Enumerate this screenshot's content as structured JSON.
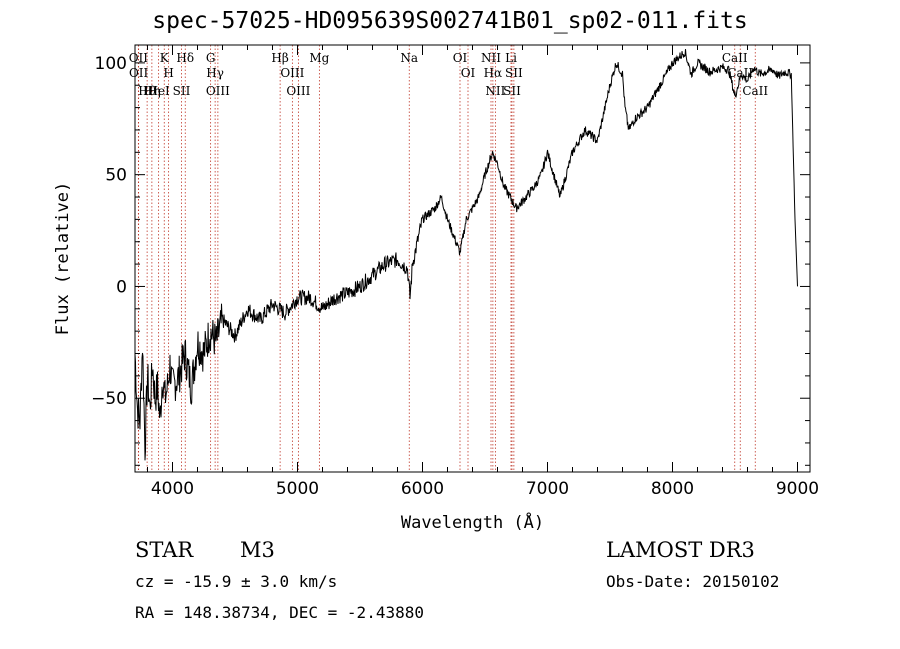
{
  "chart_data": {
    "type": "line",
    "title": "spec-57025-HD095639S002741B01_sp02-011.fits",
    "xlabel": "Wavelength (Å)",
    "ylabel": "Flux (relative)",
    "xlim": [
      3700,
      9100
    ],
    "ylim": [
      -83,
      108
    ],
    "x_ticks": [
      4000,
      5000,
      6000,
      7000,
      8000,
      9000
    ],
    "y_ticks": [
      -50,
      0,
      50,
      100
    ],
    "series": [
      {
        "name": "spectrum",
        "x": [
          3700,
          3720,
          3740,
          3760,
          3780,
          3800,
          3820,
          3840,
          3860,
          3880,
          3900,
          3920,
          3940,
          3960,
          3980,
          4000,
          4050,
          4100,
          4150,
          4200,
          4250,
          4300,
          4350,
          4400,
          4500,
          4600,
          4700,
          4800,
          4900,
          5000,
          5100,
          5200,
          5300,
          5400,
          5500,
          5600,
          5700,
          5800,
          5880,
          5900,
          5920,
          6000,
          6100,
          6150,
          6200,
          6300,
          6350,
          6450,
          6500,
          6560,
          6600,
          6650,
          6700,
          6750,
          6800,
          6900,
          6950,
          7000,
          7100,
          7200,
          7300,
          7400,
          7500,
          7550,
          7600,
          7620,
          7650,
          7700,
          7800,
          7900,
          8000,
          8100,
          8150,
          8200,
          8250,
          8300,
          8400,
          8450,
          8500,
          8550,
          8600,
          8650,
          8700,
          8750,
          8800,
          8850,
          8900,
          8950,
          8980,
          9000
        ],
        "y": [
          -30,
          -55,
          -60,
          -25,
          -72,
          -40,
          -55,
          -35,
          -50,
          -45,
          -60,
          -40,
          -50,
          -45,
          -35,
          -45,
          -40,
          -30,
          -45,
          -25,
          -30,
          -20,
          -25,
          -15,
          -22,
          -10,
          -15,
          -8,
          -12,
          -5,
          -5,
          -10,
          -5,
          -3,
          0,
          5,
          10,
          12,
          8,
          -5,
          10,
          30,
          35,
          40,
          30,
          15,
          30,
          40,
          50,
          60,
          55,
          45,
          40,
          35,
          38,
          45,
          50,
          60,
          40,
          60,
          70,
          65,
          90,
          100,
          95,
          80,
          70,
          75,
          80,
          90,
          100,
          105,
          95,
          100,
          98,
          96,
          98,
          97,
          85,
          95,
          92,
          98,
          95,
          96,
          97,
          94,
          96,
          95,
          30,
          0
        ]
      }
    ],
    "lines": [
      {
        "name": "Hθ",
        "wavelength": 3797
      },
      {
        "name": "OII",
        "wavelength": 3727
      },
      {
        "name": "OII",
        "wavelength": 3729
      },
      {
        "name": "Hη",
        "wavelength": 3835
      },
      {
        "name": "K",
        "wavelength": 3934
      },
      {
        "name": "H",
        "wavelength": 3969
      },
      {
        "name": "HeI",
        "wavelength": 3889
      },
      {
        "name": "SII",
        "wavelength": 4072
      },
      {
        "name": "Hδ",
        "wavelength": 4102
      },
      {
        "name": "OIII",
        "wavelength": 4363
      },
      {
        "name": "Hγ",
        "wavelength": 4341
      },
      {
        "name": "G",
        "wavelength": 4305
      },
      {
        "name": "Hβ",
        "wavelength": 4861
      },
      {
        "name": "OIII",
        "wavelength": 4959
      },
      {
        "name": "OIII",
        "wavelength": 5007
      },
      {
        "name": "Mg",
        "wavelength": 5175
      },
      {
        "name": "Na",
        "wavelength": 5894
      },
      {
        "name": "OI",
        "wavelength": 6300
      },
      {
        "name": "OI",
        "wavelength": 6364
      },
      {
        "name": "Hα",
        "wavelength": 6563
      },
      {
        "name": "NII",
        "wavelength": 6548
      },
      {
        "name": "NII",
        "wavelength": 6583
      },
      {
        "name": "SII",
        "wavelength": 6716
      },
      {
        "name": "SII",
        "wavelength": 6731
      },
      {
        "name": "Li",
        "wavelength": 6708
      },
      {
        "name": "CaII",
        "wavelength": 8498
      },
      {
        "name": "CaII",
        "wavelength": 8542
      },
      {
        "name": "CaII",
        "wavelength": 8662
      }
    ]
  },
  "info": {
    "object_type": "STAR",
    "subclass": "M3",
    "survey": "LAMOST DR3",
    "cz_line": "cz = -15.9 ± 3.0 km/s",
    "obs_date": "Obs-Date: 20150102",
    "radec_line": "RA = 148.38734, DEC =  -2.43880"
  }
}
